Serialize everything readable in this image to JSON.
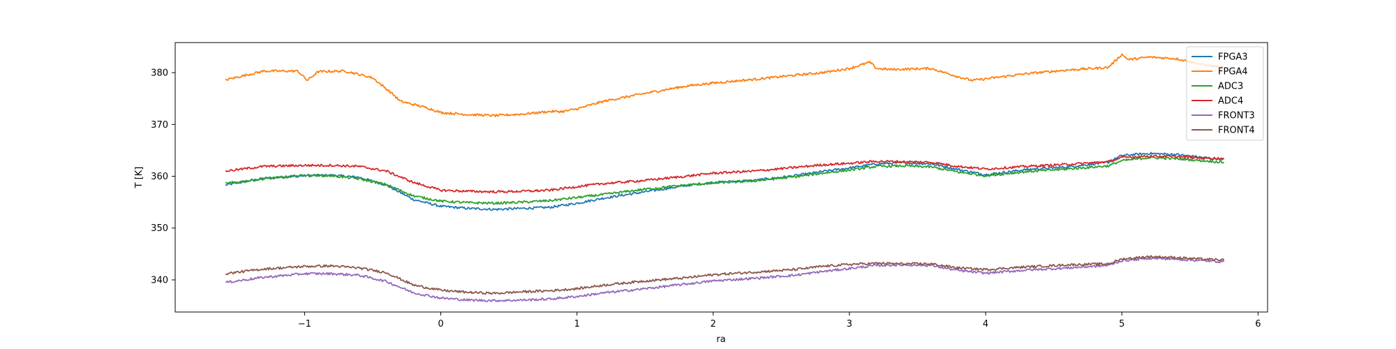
{
  "chart_data": {
    "type": "line",
    "title": "",
    "xlabel": "ra",
    "ylabel": "T [K]",
    "xlim": [
      -1.95,
      6.07
    ],
    "ylim": [
      333.8,
      385.8
    ],
    "xticks": [
      -1,
      0,
      1,
      2,
      3,
      4,
      5,
      6
    ],
    "xtick_labels": [
      "−1",
      "0",
      "1",
      "2",
      "3",
      "4",
      "5",
      "6"
    ],
    "yticks": [
      340,
      350,
      360,
      370,
      380
    ],
    "ytick_labels": [
      "340",
      "350",
      "360",
      "370",
      "380"
    ],
    "grid": false,
    "legend_position": "top-right",
    "series": [
      {
        "name": "FPGA3",
        "color": "#1f77b4",
        "x": [
          -1.58,
          -1.3,
          -1.0,
          -0.8,
          -0.6,
          -0.4,
          -0.2,
          0.0,
          0.2,
          0.4,
          0.6,
          0.8,
          1.0,
          1.2,
          1.5,
          1.8,
          2.0,
          2.3,
          2.6,
          2.8,
          3.0,
          3.2,
          3.4,
          3.6,
          3.8,
          4.0,
          4.3,
          4.6,
          4.9,
          5.0,
          5.2,
          5.4,
          5.6,
          5.75
        ],
        "y": [
          358.3,
          359.6,
          360.1,
          360.2,
          359.8,
          358.3,
          355.5,
          354.2,
          353.8,
          353.6,
          353.8,
          354.0,
          354.8,
          355.8,
          357.0,
          358.2,
          358.8,
          359.2,
          360.1,
          360.9,
          361.6,
          362.4,
          362.6,
          362.4,
          361.3,
          360.3,
          361.3,
          361.8,
          362.7,
          364.0,
          364.4,
          364.2,
          363.6,
          363.3
        ]
      },
      {
        "name": "FPGA4",
        "color": "#ff7f0e",
        "x": [
          -1.58,
          -1.3,
          -1.05,
          -0.98,
          -0.9,
          -0.7,
          -0.5,
          -0.35,
          -0.3,
          -0.1,
          0.0,
          0.2,
          0.4,
          0.6,
          0.8,
          0.9,
          1.0,
          1.2,
          1.5,
          1.8,
          2.0,
          2.3,
          2.6,
          2.8,
          3.0,
          3.15,
          3.2,
          3.3,
          3.6,
          3.8,
          3.9,
          4.0,
          4.3,
          4.6,
          4.9,
          5.0,
          5.05,
          5.2,
          5.4,
          5.6,
          5.75
        ],
        "y": [
          378.6,
          380.3,
          380.3,
          378.5,
          380.2,
          380.3,
          379.0,
          375.8,
          374.5,
          373.2,
          372.3,
          371.9,
          371.7,
          372.0,
          372.5,
          372.5,
          373.0,
          374.5,
          376.0,
          377.4,
          378.0,
          378.7,
          379.5,
          380.0,
          380.8,
          382.0,
          380.8,
          380.6,
          380.8,
          379.2,
          378.5,
          378.8,
          379.8,
          380.5,
          381.0,
          383.5,
          382.5,
          383.0,
          382.7,
          381.5,
          381.0
        ]
      },
      {
        "name": "ADC3",
        "color": "#2ca02c",
        "x": [
          -1.58,
          -1.3,
          -1.0,
          -0.8,
          -0.6,
          -0.4,
          -0.2,
          0.0,
          0.2,
          0.4,
          0.6,
          0.8,
          1.0,
          1.2,
          1.5,
          1.8,
          2.0,
          2.3,
          2.6,
          2.8,
          3.0,
          3.2,
          3.4,
          3.6,
          3.8,
          4.0,
          4.3,
          4.6,
          4.9,
          5.0,
          5.2,
          5.4,
          5.6,
          5.75
        ],
        "y": [
          358.6,
          359.5,
          360.2,
          360.1,
          359.5,
          358.4,
          356.2,
          355.2,
          354.9,
          354.8,
          355.0,
          355.3,
          355.9,
          356.5,
          357.5,
          358.3,
          358.7,
          359.1,
          359.9,
          360.6,
          361.2,
          361.9,
          362.0,
          361.8,
          360.8,
          360.1,
          360.9,
          361.4,
          362.0,
          363.0,
          363.6,
          363.4,
          363.0,
          362.7
        ]
      },
      {
        "name": "ADC4",
        "color": "#d62728",
        "x": [
          -1.58,
          -1.3,
          -1.0,
          -0.8,
          -0.6,
          -0.4,
          -0.2,
          0.0,
          0.2,
          0.4,
          0.6,
          0.8,
          1.0,
          1.2,
          1.5,
          1.8,
          2.0,
          2.3,
          2.6,
          2.8,
          3.0,
          3.2,
          3.4,
          3.6,
          3.8,
          4.0,
          4.3,
          4.6,
          4.9,
          5.0,
          5.2,
          5.4,
          5.6,
          5.75
        ],
        "y": [
          361.0,
          361.9,
          362.1,
          362.1,
          361.9,
          361.0,
          358.8,
          357.3,
          357.1,
          357.0,
          357.1,
          357.3,
          358.0,
          358.6,
          359.2,
          360.0,
          360.6,
          361.0,
          361.7,
          362.2,
          362.5,
          362.9,
          362.8,
          362.7,
          361.9,
          361.4,
          361.9,
          362.3,
          362.8,
          363.6,
          363.9,
          363.8,
          363.5,
          363.4
        ]
      },
      {
        "name": "FRONT3",
        "color": "#9467bd",
        "x": [
          -1.58,
          -1.3,
          -1.0,
          -0.8,
          -0.6,
          -0.4,
          -0.2,
          0.0,
          0.2,
          0.4,
          0.6,
          0.8,
          1.0,
          1.2,
          1.5,
          1.8,
          2.0,
          2.3,
          2.6,
          2.8,
          3.0,
          3.2,
          3.4,
          3.6,
          3.8,
          4.0,
          4.3,
          4.6,
          4.9,
          5.0,
          5.2,
          5.4,
          5.6,
          5.75
        ],
        "y": [
          339.5,
          340.5,
          341.2,
          341.2,
          340.9,
          339.7,
          337.5,
          336.5,
          336.1,
          336.0,
          336.1,
          336.3,
          336.8,
          337.5,
          338.3,
          339.2,
          339.8,
          340.3,
          340.9,
          341.6,
          342.2,
          342.8,
          342.9,
          342.8,
          341.8,
          341.3,
          341.9,
          342.3,
          342.8,
          343.7,
          344.2,
          344.0,
          343.7,
          343.5
        ]
      },
      {
        "name": "FRONT4",
        "color": "#8c564b",
        "x": [
          -1.58,
          -1.3,
          -1.0,
          -0.8,
          -0.6,
          -0.4,
          -0.2,
          0.0,
          0.2,
          0.4,
          0.6,
          0.8,
          1.0,
          1.2,
          1.5,
          1.8,
          2.0,
          2.3,
          2.6,
          2.8,
          3.0,
          3.2,
          3.4,
          3.6,
          3.8,
          4.0,
          4.3,
          4.6,
          4.9,
          5.0,
          5.2,
          5.4,
          5.6,
          5.75
        ],
        "y": [
          341.2,
          342.1,
          342.6,
          342.7,
          342.3,
          341.4,
          339.0,
          338.0,
          337.6,
          337.4,
          337.7,
          337.9,
          338.3,
          339.0,
          339.8,
          340.4,
          341.0,
          341.5,
          342.0,
          342.6,
          343.0,
          343.2,
          343.1,
          343.1,
          342.3,
          342.0,
          342.5,
          342.9,
          343.1,
          344.0,
          344.5,
          344.3,
          344.0,
          343.8
        ]
      }
    ]
  }
}
